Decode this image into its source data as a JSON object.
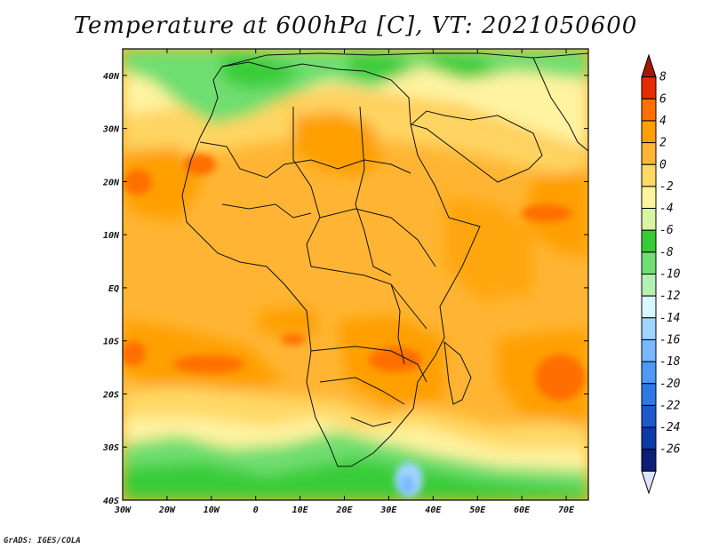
{
  "title": "Temperature at 600hPa [C], VT: 2021050600",
  "credit": "GrADS: IGES/COLA",
  "map": {
    "lon_ticks": [
      "30W",
      "20W",
      "10W",
      "0",
      "10E",
      "20E",
      "30E",
      "40E",
      "50E",
      "60E",
      "70E"
    ],
    "lat_ticks": [
      "40N",
      "30N",
      "20N",
      "10N",
      "EQ",
      "10S",
      "20S",
      "30S",
      "40S"
    ],
    "lon_range": [
      -30,
      75
    ],
    "lat_range": [
      -40,
      45
    ]
  },
  "colorbar": {
    "labels": [
      "8",
      "6",
      "4",
      "2",
      "0",
      "-2",
      "-4",
      "-6",
      "-8",
      "-10",
      "-12",
      "-14",
      "-16",
      "-18",
      "-20",
      "-22",
      "-24",
      "-26"
    ],
    "colors": [
      "#a51900",
      "#e62d00",
      "#ff6e00",
      "#ff9f00",
      "#ffb533",
      "#ffd866",
      "#fff3a0",
      "#d8f5a0",
      "#38cc38",
      "#70de70",
      "#b4f0b4",
      "#d8f8ff",
      "#a0d4ff",
      "#78b8ff",
      "#4e99f5",
      "#2d79e6",
      "#1a5acd",
      "#0c3aa8",
      "#0a1e7a",
      "#dce4ff"
    ]
  }
}
